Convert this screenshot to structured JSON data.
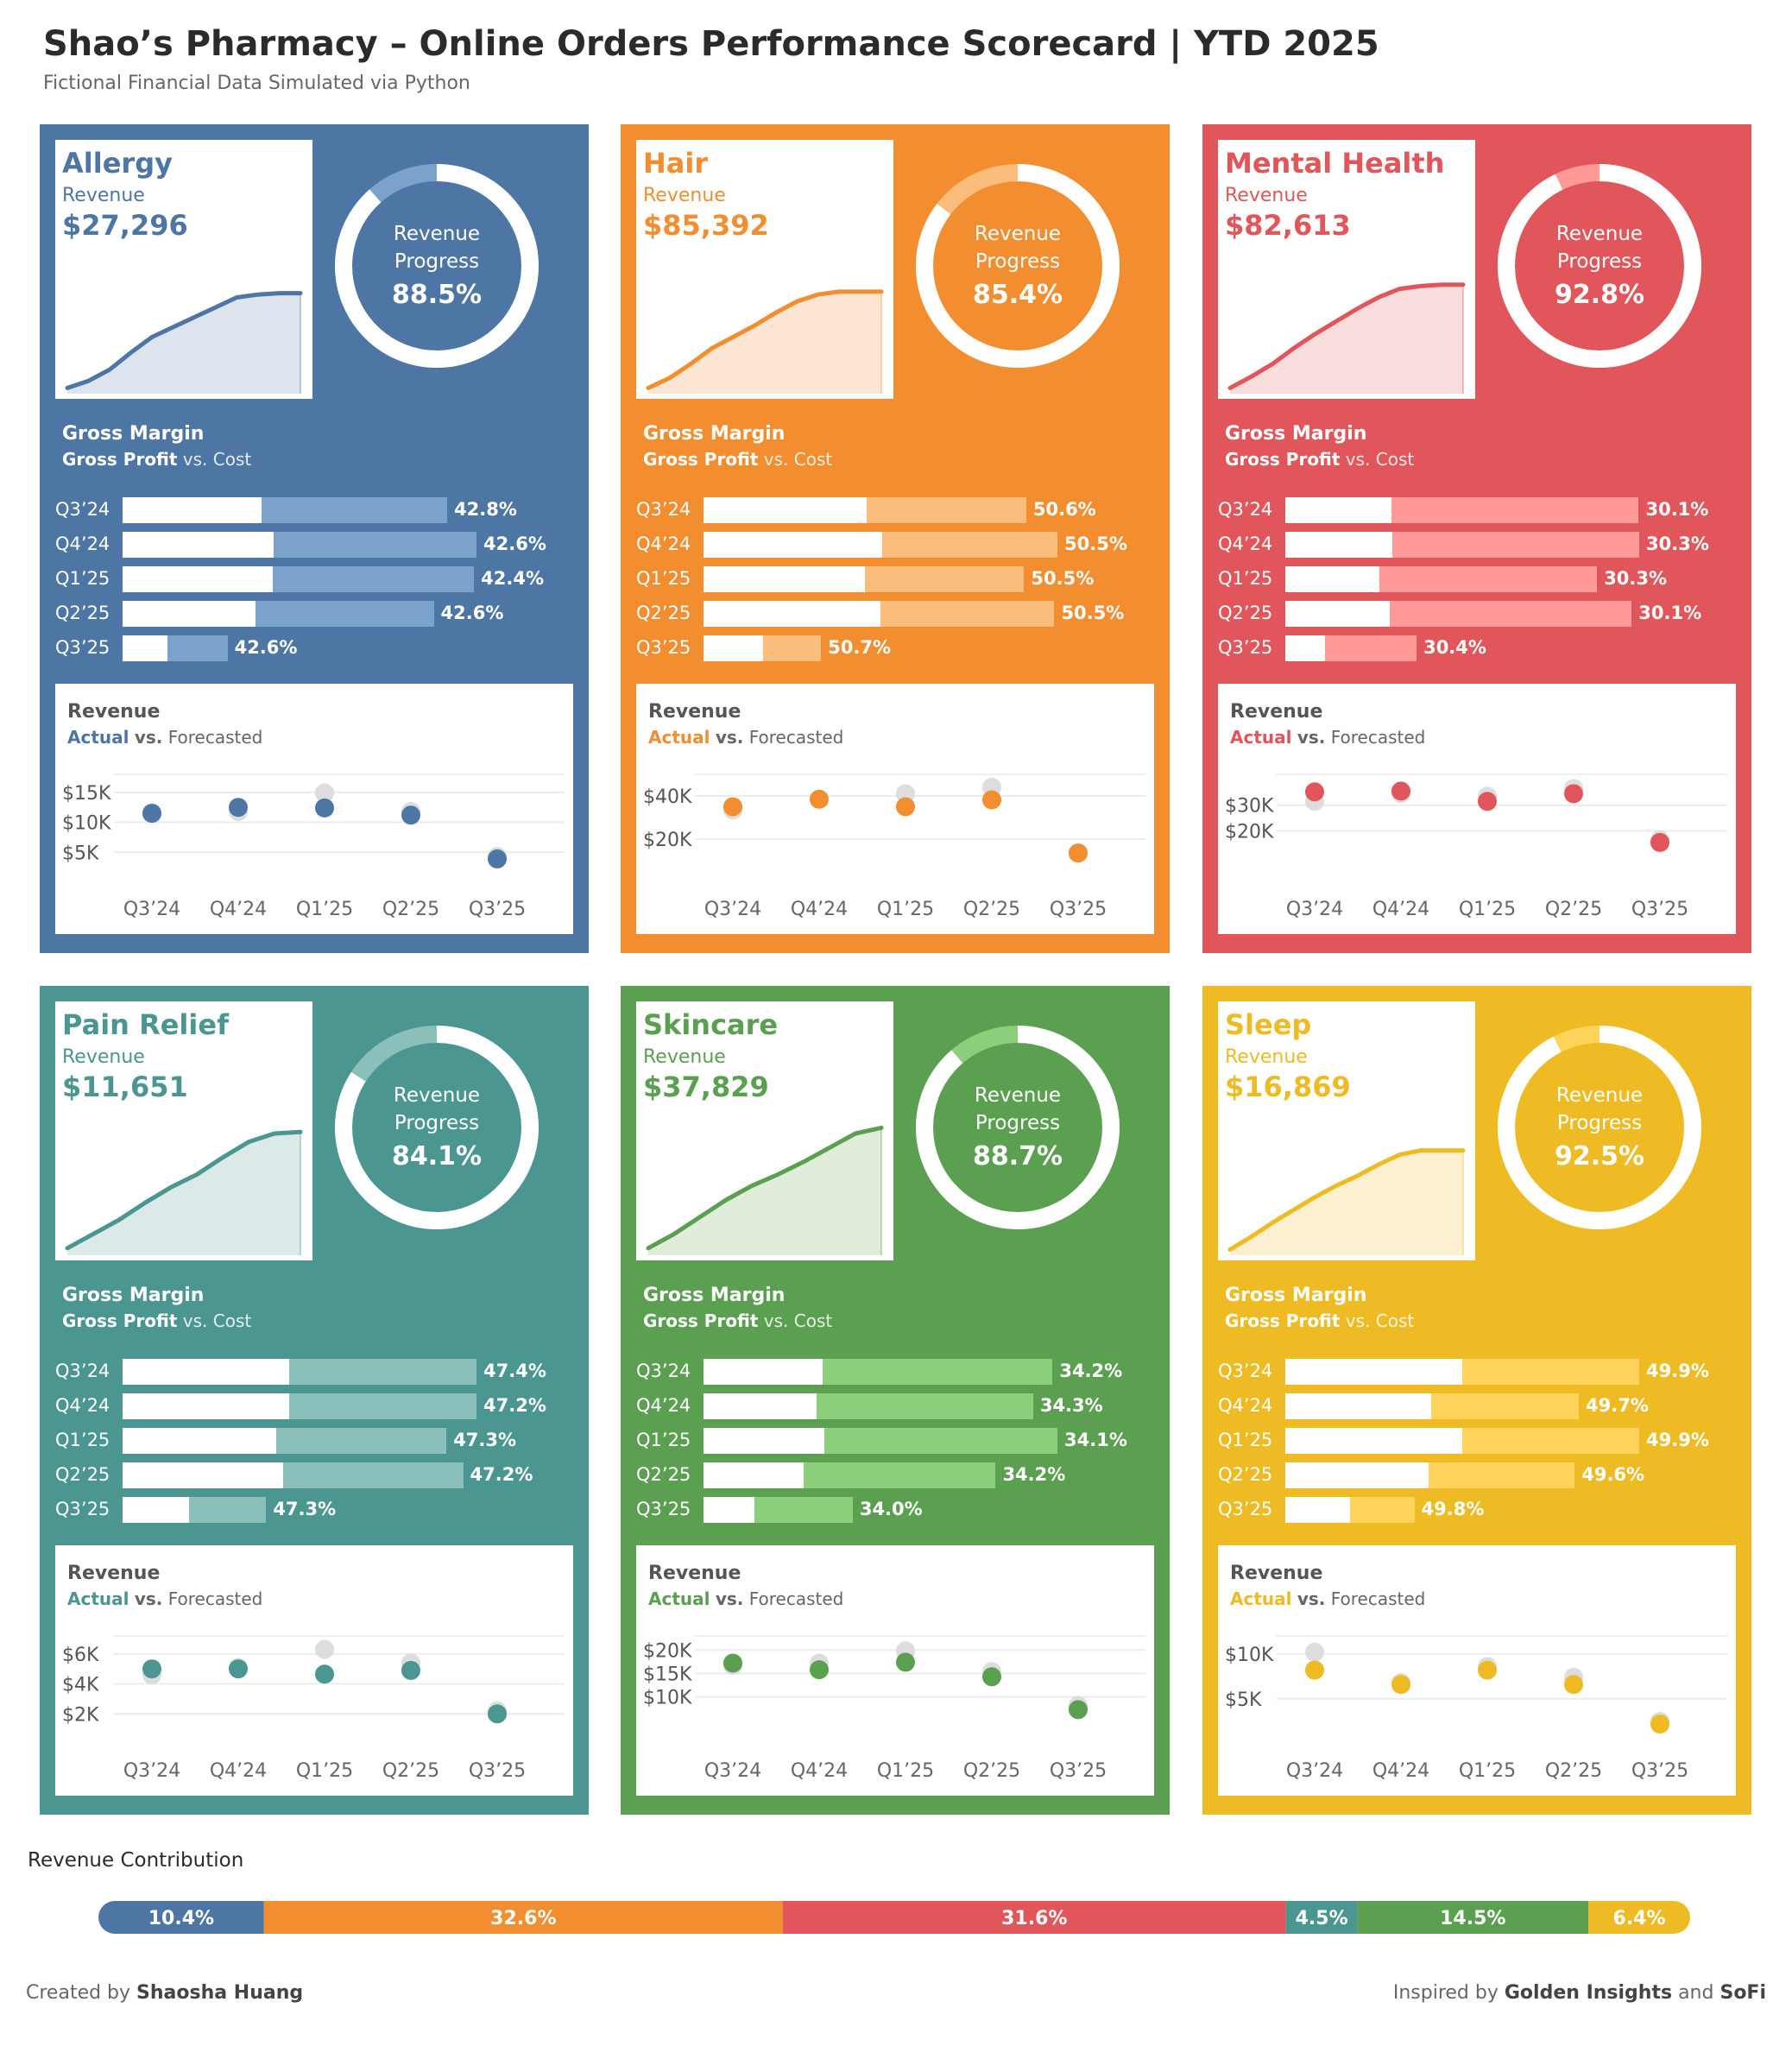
{
  "header": {
    "title": "Shao’s Pharmacy – Online Orders Performance Scorecard | YTD 2025",
    "subtitle": "Fictional Financial Data Simulated via Python"
  },
  "labels": {
    "revenue": "Revenue",
    "progress_line1": "Revenue",
    "progress_line2": "Progress",
    "gross_margin": "Gross Margin",
    "gross_profit": "Gross Profit",
    "vs": "vs.",
    "cost": "Cost",
    "actual": "Actual",
    "forecasted": "Forecasted",
    "contribution_title": "Revenue Contribution"
  },
  "footer": {
    "created_by_label": "Created by",
    "author": "Shaosha Huang",
    "inspired_label": "Inspired by",
    "inspired_1": "Golden Insights",
    "and": "and",
    "inspired_2": "SoFi"
  },
  "chart_data": {
    "type": "scorecard",
    "quarters": [
      "Q3’24",
      "Q4’24",
      "Q1’25",
      "Q2’25",
      "Q3’25"
    ],
    "categories": [
      {
        "name": "Allergy",
        "color": "#4e76a5",
        "text_color": "#4e76a5",
        "cost_color": "#7ba2cb",
        "ring_light": "#7ba2cb",
        "spark_fill": "#dde4ee",
        "spark_line": "#4e76a5",
        "revenue": "$27,296",
        "progress_pct": 88.5,
        "progress_label": "88.5%",
        "cumulative_revenue": [
          0.04,
          0.09,
          0.17,
          0.29,
          0.4,
          0.47,
          0.54,
          0.61,
          0.68,
          0.7,
          0.71,
          0.71
        ],
        "gross_margin": [
          {
            "profit": 11.4,
            "cost": 15.2,
            "label": "42.8%"
          },
          {
            "profit": 12.4,
            "cost": 16.6,
            "label": "42.6%"
          },
          {
            "profit": 12.3,
            "cost": 16.5,
            "label": "42.4%"
          },
          {
            "profit": 10.9,
            "cost": 14.6,
            "label": "42.6%"
          },
          {
            "profit": 3.7,
            "cost": 4.9,
            "label": "42.6%"
          }
        ],
        "actual_vs_forecast": {
          "ticks": [
            5000,
            10000,
            15000
          ],
          "tick_labels": [
            "$5K",
            "$10K",
            "$15K"
          ],
          "ylim": [
            0,
            18000
          ],
          "actual": [
            11500,
            12500,
            12400,
            11200,
            3900
          ],
          "forecast": [
            11600,
            11800,
            14900,
            11800,
            4300
          ]
        }
      },
      {
        "name": "Hair",
        "color": "#f28d30",
        "text_color": "#f28d30",
        "cost_color": "#fbbd7c",
        "ring_light": "#fbbd7c",
        "spark_fill": "#fce5d3",
        "spark_line": "#f28d30",
        "revenue": "$85,392",
        "progress_pct": 85.4,
        "progress_label": "85.4%",
        "cumulative_revenue": [
          0.04,
          0.11,
          0.21,
          0.32,
          0.4,
          0.48,
          0.57,
          0.65,
          0.7,
          0.72,
          0.72,
          0.72
        ],
        "gross_margin": [
          {
            "profit": 37.2,
            "cost": 36.4,
            "label": "50.6%"
          },
          {
            "profit": 40.7,
            "cost": 40.0,
            "label": "50.5%"
          },
          {
            "profit": 36.9,
            "cost": 36.2,
            "label": "50.5%"
          },
          {
            "profit": 40.4,
            "cost": 39.6,
            "label": "50.5%"
          },
          {
            "profit": 13.6,
            "cost": 13.2,
            "label": "50.7%"
          }
        ],
        "actual_vs_forecast": {
          "ticks": [
            20000,
            40000
          ],
          "tick_labels": [
            "$20K",
            "$40K"
          ],
          "ylim": [
            0,
            50000
          ],
          "actual": [
            35000,
            38500,
            35000,
            38200,
            13500
          ],
          "forecast": [
            33500,
            38500,
            41000,
            44000,
            13800
          ]
        }
      },
      {
        "name": "Mental Health",
        "color": "#e0565a",
        "text_color": "#e0565a",
        "cost_color": "#ff9a98",
        "ring_light": "#ff9a98",
        "spark_fill": "#f9dcdc",
        "spark_line": "#e0565a",
        "revenue": "$82,613",
        "progress_pct": 92.8,
        "progress_label": "92.8%",
        "cumulative_revenue": [
          0.04,
          0.12,
          0.21,
          0.32,
          0.42,
          0.51,
          0.6,
          0.68,
          0.74,
          0.76,
          0.77,
          0.77
        ],
        "gross_margin": [
          {
            "profit": 24.0,
            "cost": 55.7,
            "label": "30.1%"
          },
          {
            "profit": 24.2,
            "cost": 55.6,
            "label": "30.3%"
          },
          {
            "profit": 21.3,
            "cost": 49.0,
            "label": "30.3%"
          },
          {
            "profit": 23.5,
            "cost": 54.6,
            "label": "30.1%"
          },
          {
            "profit": 9.0,
            "cost": 20.6,
            "label": "30.4%"
          }
        ],
        "actual_vs_forecast": {
          "ticks": [
            20000,
            30000
          ],
          "tick_labels": [
            "$20K",
            "$30K"
          ],
          "ylim": [
            0,
            42000
          ],
          "actual": [
            35200,
            35500,
            31500,
            34500,
            15500
          ],
          "forecast": [
            31500,
            34500,
            33500,
            36500,
            16500
          ]
        }
      },
      {
        "name": "Pain Relief",
        "color": "#4b9690",
        "text_color": "#4b9690",
        "cost_color": "#8ac0b9",
        "ring_light": "#8ac0b9",
        "spark_fill": "#dbe9e8",
        "spark_line": "#4b9690",
        "revenue": "$11,651",
        "progress_pct": 84.1,
        "progress_label": "84.1%",
        "cumulative_revenue": [
          0.05,
          0.15,
          0.25,
          0.37,
          0.48,
          0.57,
          0.69,
          0.8,
          0.86,
          0.87
        ],
        "gross_margin": [
          {
            "profit": 5.0,
            "cost": 5.6,
            "label": "47.4%"
          },
          {
            "profit": 5.0,
            "cost": 5.6,
            "label": "47.2%"
          },
          {
            "profit": 4.6,
            "cost": 5.1,
            "label": "47.3%"
          },
          {
            "profit": 4.8,
            "cost": 5.4,
            "label": "47.2%"
          },
          {
            "profit": 2.0,
            "cost": 2.3,
            "label": "47.3%"
          }
        ],
        "actual_vs_forecast": {
          "ticks": [
            2000,
            4000,
            6000
          ],
          "tick_labels": [
            "$2K",
            "$4K",
            "$6K"
          ],
          "ylim": [
            0,
            7200
          ],
          "actual": [
            5000,
            5000,
            4650,
            4900,
            2000
          ],
          "forecast": [
            4600,
            5100,
            6300,
            5400,
            2200
          ]
        }
      },
      {
        "name": "Skincare",
        "color": "#5aa050",
        "text_color": "#5aa050",
        "cost_color": "#8ccf7a",
        "ring_light": "#8ccf7a",
        "spark_fill": "#dfedda",
        "spark_line": "#5aa050",
        "revenue": "$37,829",
        "progress_pct": 88.7,
        "progress_label": "88.7%",
        "cumulative_revenue": [
          0.05,
          0.15,
          0.27,
          0.39,
          0.49,
          0.57,
          0.66,
          0.76,
          0.86,
          0.9
        ],
        "gross_margin": [
          {
            "profit": 17.2,
            "cost": 33.1,
            "label": "34.2%"
          },
          {
            "profit": 16.3,
            "cost": 31.2,
            "label": "34.3%"
          },
          {
            "profit": 17.4,
            "cost": 33.6,
            "label": "34.1%"
          },
          {
            "profit": 14.4,
            "cost": 27.7,
            "label": "34.2%"
          },
          {
            "profit": 7.3,
            "cost": 14.2,
            "label": "34.0%"
          }
        ],
        "actual_vs_forecast": {
          "ticks": [
            10000,
            15000,
            20000
          ],
          "tick_labels": [
            "$10K",
            "$15K",
            "$20K"
          ],
          "ylim": [
            0,
            23000
          ],
          "actual": [
            17200,
            15800,
            17400,
            14300,
            7300
          ],
          "forecast": [
            16700,
            17200,
            19800,
            15400,
            8200
          ]
        }
      },
      {
        "name": "Sleep",
        "color": "#efbb24",
        "text_color": "#efbb24",
        "cost_color": "#ffd45a",
        "ring_light": "#ffd45a",
        "spark_fill": "#fcf0d0",
        "spark_line": "#efbb24",
        "revenue": "$16,869",
        "progress_pct": 92.5,
        "progress_label": "92.5%",
        "cumulative_revenue": [
          0.04,
          0.13,
          0.23,
          0.32,
          0.41,
          0.49,
          0.56,
          0.64,
          0.71,
          0.74,
          0.74,
          0.74
        ],
        "gross_margin": [
          {
            "profit": 8.5,
            "cost": 8.5,
            "label": "49.9%"
          },
          {
            "profit": 7.0,
            "cost": 7.1,
            "label": "49.7%"
          },
          {
            "profit": 8.5,
            "cost": 8.5,
            "label": "49.9%"
          },
          {
            "profit": 6.9,
            "cost": 7.0,
            "label": "49.6%"
          },
          {
            "profit": 3.1,
            "cost": 3.1,
            "label": "49.8%"
          }
        ],
        "actual_vs_forecast": {
          "ticks": [
            5000,
            10000
          ],
          "tick_labels": [
            "$5K",
            "$10K"
          ],
          "ylim": [
            0,
            12000
          ],
          "actual": [
            8200,
            6600,
            8200,
            6600,
            2200
          ],
          "forecast": [
            10200,
            6800,
            8600,
            7400,
            2500
          ]
        }
      }
    ],
    "revenue_contribution": [
      {
        "name": "Allergy",
        "pct": 10.4,
        "label": "10.4%",
        "color": "#4e76a5"
      },
      {
        "name": "Hair",
        "pct": 32.6,
        "label": "32.6%",
        "color": "#f28d30"
      },
      {
        "name": "Mental Health",
        "pct": 31.6,
        "label": "31.6%",
        "color": "#e0565a"
      },
      {
        "name": "Pain Relief",
        "pct": 4.5,
        "label": "4.5%",
        "color": "#4b9690"
      },
      {
        "name": "Skincare",
        "pct": 14.5,
        "label": "14.5%",
        "color": "#5aa050"
      },
      {
        "name": "Sleep",
        "pct": 6.4,
        "label": "6.4%",
        "color": "#efbb24"
      }
    ]
  }
}
